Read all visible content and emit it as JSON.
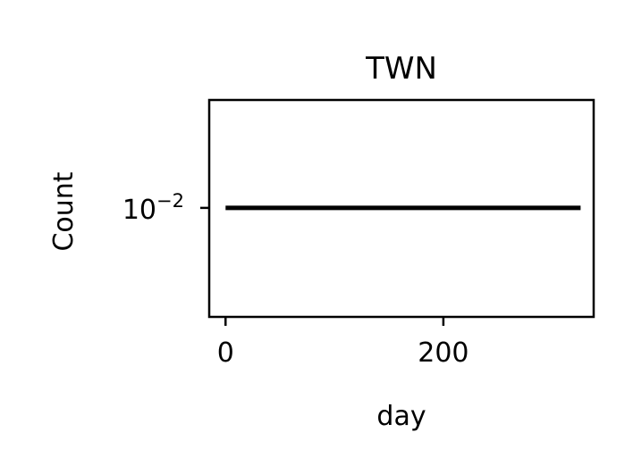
{
  "chart_data": {
    "type": "line",
    "title": "TWN",
    "xlabel": "day",
    "ylabel": "Count",
    "x_ticks": [
      0,
      200
    ],
    "x_tick_labels": [
      "0",
      "200"
    ],
    "y_scale": "log",
    "y_ticks": [
      0.01
    ],
    "y_tick_labels": [
      {
        "base": "10",
        "exponent": "−2"
      }
    ],
    "xlim": [
      -15,
      338
    ],
    "ylim": [
      0.0063,
      0.0158
    ],
    "grid": false,
    "series": [
      {
        "color": "#000000",
        "x": [
          0,
          326
        ],
        "y": [
          0.01,
          0.01
        ]
      }
    ]
  }
}
